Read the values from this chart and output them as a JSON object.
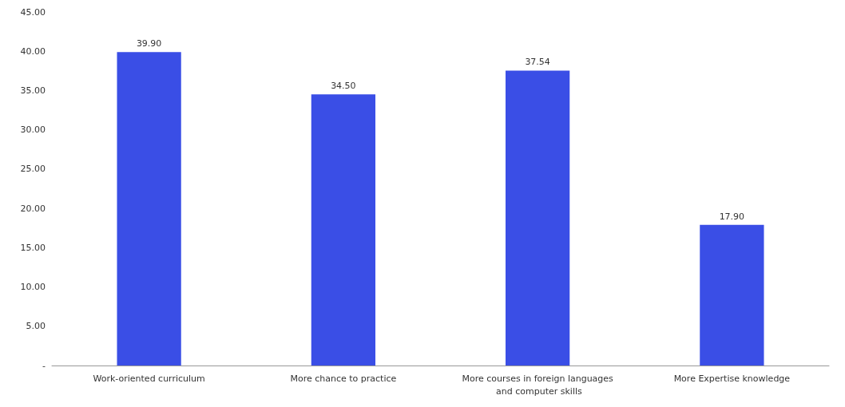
{
  "chart_data": {
    "type": "bar",
    "categories": [
      "Work-oriented curriculum",
      "More chance to practice",
      "More courses in foreign languages and computer skills",
      "More Expertise knowledge"
    ],
    "values": [
      39.9,
      34.5,
      37.54,
      17.9
    ],
    "value_labels": [
      "39.90",
      "34.50",
      "37.54",
      "17.90"
    ],
    "color": "#3a4ee6",
    "ylim": [
      0,
      45
    ],
    "yticks": [
      {
        "value": 0,
        "label": "-"
      },
      {
        "value": 5,
        "label": "5.00"
      },
      {
        "value": 10,
        "label": "10.00"
      },
      {
        "value": 15,
        "label": "15.00"
      },
      {
        "value": 20,
        "label": "20.00"
      },
      {
        "value": 25,
        "label": "25.00"
      },
      {
        "value": 30,
        "label": "30.00"
      },
      {
        "value": 35,
        "label": "35.00"
      },
      {
        "value": 40,
        "label": "40.00"
      },
      {
        "value": 45,
        "label": "45.00"
      }
    ],
    "grid": false
  }
}
